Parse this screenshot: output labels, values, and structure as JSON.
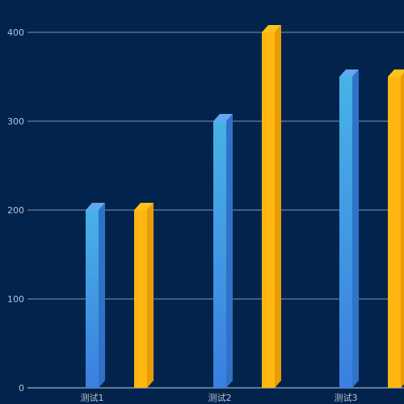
{
  "chart_data": {
    "type": "bar",
    "categories": [
      "测试1",
      "测试2",
      "测试3"
    ],
    "series": [
      {
        "values": [
          200,
          300,
          350
        ],
        "colors": {
          "top": "#62a8f0",
          "side": "#2f73c8",
          "front_top": "#47b2e6",
          "front_bottom": "#3b7fe0"
        }
      },
      {
        "values": [
          200,
          400,
          350
        ],
        "colors": {
          "top": "#ffc21a",
          "side": "#e89c06",
          "front_top": "#ffb612",
          "front_bottom": "#ffb612"
        }
      }
    ],
    "yticks": [
      0,
      100,
      200,
      300,
      400
    ],
    "ylim": [
      0,
      400
    ],
    "title": "",
    "xlabel": "",
    "ylabel": "",
    "grid": true,
    "background": "#02244c",
    "gridline_color": "#d9e2ee"
  }
}
